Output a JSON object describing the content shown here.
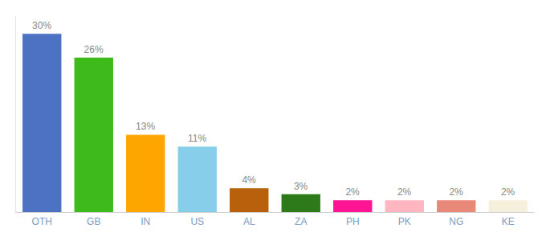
{
  "chart_data": {
    "type": "bar",
    "categories": [
      "OTH",
      "GB",
      "IN",
      "US",
      "AL",
      "ZA",
      "PH",
      "PK",
      "NG",
      "KE"
    ],
    "values": [
      30,
      26,
      13,
      11,
      4,
      3,
      2,
      2,
      2,
      2
    ],
    "value_labels": [
      "30%",
      "26%",
      "13%",
      "11%",
      "4%",
      "3%",
      "2%",
      "2%",
      "2%",
      "2%"
    ],
    "colors": [
      "#4d72c4",
      "#3dbb1a",
      "#ffa500",
      "#87ceeb",
      "#b8600c",
      "#2d7a1a",
      "#ff1493",
      "#ffb6c1",
      "#e8897a",
      "#f5f0dc"
    ],
    "ylim": [
      0,
      33
    ],
    "data_labels": true,
    "tick_labels": "x",
    "grid": false
  }
}
